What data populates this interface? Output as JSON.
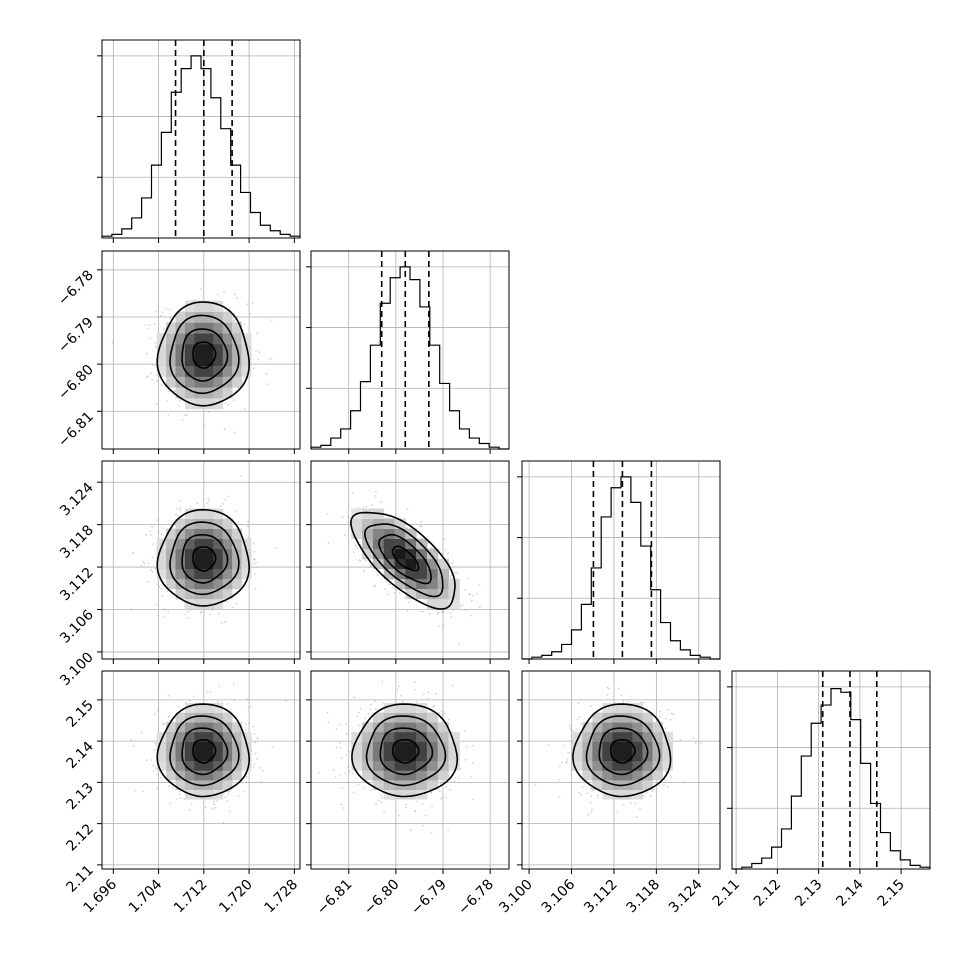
{
  "chart_data": {
    "type": "corner",
    "parameters": [
      {
        "range": [
          1.694,
          1.729
        ],
        "ticks": [
          "1.696",
          "1.704",
          "1.712",
          "1.720",
          "1.728"
        ],
        "tick_values": [
          1.696,
          1.704,
          1.712,
          1.72,
          1.728
        ],
        "mean": 1.712,
        "std": 0.004,
        "quantiles": [
          1.707,
          1.712,
          1.717
        ]
      },
      {
        "range": [
          -6.818,
          -6.776
        ],
        "ticks": [
          "−6.81",
          "−6.80",
          "−6.79",
          "−6.78"
        ],
        "tick_values": [
          -6.81,
          -6.8,
          -6.79,
          -6.78
        ],
        "mean": -6.798,
        "std": 0.0055,
        "quantiles": [
          -6.803,
          -6.798,
          -6.793
        ]
      },
      {
        "range": [
          3.099,
          3.127
        ],
        "ticks": [
          "3.100",
          "3.106",
          "3.112",
          "3.118",
          "3.124"
        ],
        "tick_values": [
          3.1,
          3.106,
          3.112,
          3.118,
          3.124
        ],
        "mean": 3.1132,
        "std": 0.0034,
        "quantiles": [
          3.1091,
          3.1132,
          3.1173
        ]
      },
      {
        "range": [
          2.109,
          2.157
        ],
        "ticks": [
          "2.11",
          "2.12",
          "2.13",
          "2.14",
          "2.15"
        ],
        "tick_values": [
          2.11,
          2.12,
          2.13,
          2.14,
          2.15
        ],
        "mean": 2.1376,
        "std": 0.0056,
        "quantiles": [
          2.131,
          2.1376,
          2.1441
        ]
      }
    ],
    "diagonal_histograms": [
      {
        "bins": 20,
        "counts": [
          0.01,
          0.02,
          0.05,
          0.11,
          0.22,
          0.4,
          0.58,
          0.8,
          0.93,
          1.0,
          0.93,
          0.77,
          0.6,
          0.4,
          0.25,
          0.14,
          0.07,
          0.04,
          0.02,
          0.01
        ]
      },
      {
        "bins": 20,
        "counts": [
          0.01,
          0.02,
          0.06,
          0.11,
          0.21,
          0.37,
          0.57,
          0.8,
          0.94,
          1.0,
          0.93,
          0.78,
          0.57,
          0.36,
          0.21,
          0.11,
          0.06,
          0.03,
          0.01,
          0.0
        ]
      },
      {
        "bins": 20,
        "counts": [
          0.0,
          0.01,
          0.02,
          0.04,
          0.08,
          0.16,
          0.3,
          0.5,
          0.78,
          0.94,
          1.0,
          0.86,
          0.62,
          0.38,
          0.2,
          0.1,
          0.05,
          0.02,
          0.01,
          0.0
        ]
      },
      {
        "bins": 20,
        "counts": [
          0.0,
          0.01,
          0.03,
          0.06,
          0.12,
          0.22,
          0.4,
          0.62,
          0.8,
          0.9,
          0.99,
          0.97,
          0.82,
          0.58,
          0.36,
          0.2,
          0.1,
          0.05,
          0.02,
          0.01
        ]
      }
    ],
    "correlations": {
      "1-0": 0.0,
      "2-0": 0.0,
      "3-0": 0.0,
      "2-1": -0.68,
      "3-1": 0.0,
      "3-2": 0.0
    },
    "contour_levels_sigma": [
      0.5,
      1.0,
      1.5,
      2.0
    ],
    "grid": true
  }
}
